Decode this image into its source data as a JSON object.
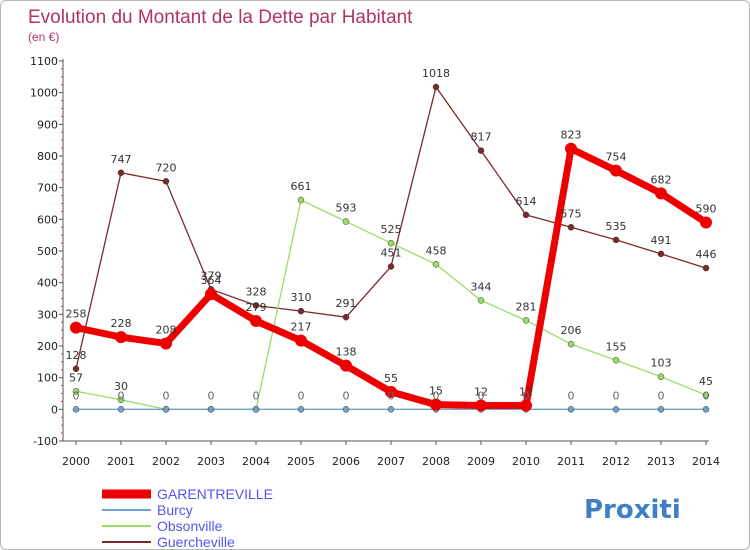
{
  "chart_data": {
    "type": "line",
    "title": "Evolution du Montant de la Dette par Habitant",
    "subtitle": "(en €)",
    "x": [
      "2000",
      "2001",
      "2002",
      "2003",
      "2004",
      "2005",
      "2006",
      "2007",
      "2008",
      "2009",
      "2010",
      "2011",
      "2012",
      "2013",
      "2014"
    ],
    "yticks": [
      -100,
      0,
      100,
      200,
      300,
      400,
      500,
      600,
      700,
      800,
      900,
      1000,
      1100
    ],
    "ylim": [
      -100,
      1100
    ],
    "grid": false,
    "legend_position": "bottom-left",
    "series": [
      {
        "name": "GARENTREVILLE",
        "color": "#ee0000",
        "values": [
          258,
          228,
          208,
          364,
          279,
          217,
          138,
          55,
          15,
          12,
          12,
          823,
          754,
          682,
          590
        ],
        "labels": [
          "258",
          "228",
          "208",
          "364",
          "279",
          "217",
          "138",
          "55",
          "15",
          "12",
          "12",
          "823",
          "754",
          "682",
          "590"
        ]
      },
      {
        "name": "Burcy",
        "color": "#6fa3cc",
        "values": [
          0,
          0,
          0,
          0,
          0,
          0,
          0,
          0,
          0,
          0,
          0,
          0,
          0,
          0,
          0
        ],
        "labels": [
          "0",
          "0",
          "0",
          "0",
          "0",
          "0",
          "0",
          "0",
          "0",
          "0",
          "0",
          "0",
          "0",
          "0",
          "0"
        ]
      },
      {
        "name": "Obsonville",
        "color": "#99dd66",
        "values": [
          57,
          30,
          0,
          0,
          0,
          661,
          593,
          525,
          458,
          344,
          281,
          206,
          155,
          103,
          45
        ],
        "labels": [
          "57",
          "30",
          "",
          "",
          "",
          "661",
          "593",
          "525",
          "458",
          "344",
          "281",
          "206",
          "155",
          "103",
          "45"
        ]
      },
      {
        "name": "Guercheville",
        "color": "#7a2a2a",
        "values": [
          128,
          747,
          720,
          379,
          328,
          310,
          291,
          451,
          1018,
          817,
          614,
          575,
          535,
          491,
          446
        ],
        "labels": [
          "128",
          "747",
          "720",
          "379",
          "328",
          "310",
          "291",
          "451",
          "1018",
          "817",
          "614",
          "575",
          "535",
          "491",
          "446"
        ]
      }
    ]
  },
  "logo": {
    "text": "Proxiti"
  }
}
